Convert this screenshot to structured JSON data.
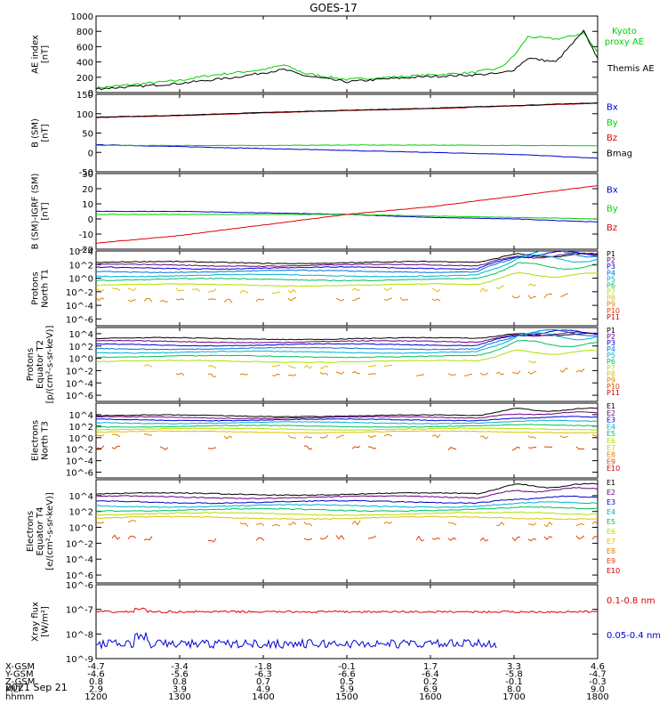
{
  "title": "GOES-17",
  "date": "2021 Sep 21",
  "colors": {
    "black": "#000000",
    "red": "#e00000",
    "green": "#00d000",
    "blue": "#0000d0"
  },
  "footer": {
    "row_labels": [
      "X-GSM",
      "Y-GSM",
      "Z-GSM",
      "MLT",
      "hhmm"
    ],
    "columns": [
      [
        "-4.7",
        "-4.6",
        "0.8",
        "2.9",
        "1200"
      ],
      [
        "-3.4",
        "-5.6",
        "0.8",
        "3.9",
        "1300"
      ],
      [
        "-1.8",
        "-6.3",
        "0.7",
        "4.9",
        "1400"
      ],
      [
        "-0.1",
        "-6.6",
        "0.5",
        "5.9",
        "1500"
      ],
      [
        "1.7",
        "-6.4",
        "0.2",
        "6.9",
        "1600"
      ],
      [
        "3.3",
        "-5.8",
        "-0.1",
        "8.0",
        "1700"
      ],
      [
        "4.6",
        "-4.7",
        "-0.3",
        "9.0",
        "1800"
      ]
    ]
  },
  "chart_data": [
    {
      "type": "line",
      "ylabel": [
        "AE index",
        "[nT]"
      ],
      "ylim": [
        0,
        1000
      ],
      "yticks": [
        "1000",
        "800",
        "600",
        "400",
        "200",
        "0"
      ],
      "legend": [
        {
          "text": "Kyoto",
          "color": "#00d000"
        },
        {
          "text": "proxy AE",
          "color": "#00d000"
        },
        {
          "text": "Themis AE",
          "color": "#000000"
        }
      ],
      "x": [
        1200,
        1230,
        1300,
        1320,
        1340,
        1400,
        1415,
        1430,
        1500,
        1530,
        1600,
        1630,
        1650,
        1700,
        1710,
        1730,
        1740,
        1750,
        1800
      ],
      "series": [
        {
          "name": "Kyoto proxy AE",
          "color": "#00d000",
          "values": [
            60,
            110,
            160,
            220,
            260,
            300,
            360,
            250,
            170,
            200,
            230,
            260,
            320,
            480,
            730,
            700,
            730,
            780,
            520
          ]
        },
        {
          "name": "Themis AE",
          "color": "#000000",
          "values": [
            50,
            80,
            120,
            160,
            200,
            260,
            300,
            220,
            140,
            180,
            210,
            230,
            250,
            300,
            450,
            400,
            600,
            800,
            450
          ]
        }
      ]
    },
    {
      "type": "line",
      "ylabel": [
        "B (SM)",
        "[nT]"
      ],
      "ylim": [
        -50,
        150
      ],
      "yticks": [
        "150",
        "100",
        "50",
        "0",
        "-50"
      ],
      "legend": [
        {
          "text": "Bx",
          "color": "#0000d0"
        },
        {
          "text": "By",
          "color": "#00d000"
        },
        {
          "text": "Bz",
          "color": "#e00000"
        },
        {
          "text": "Bmag",
          "color": "#000000"
        }
      ],
      "x": [
        1200,
        1300,
        1400,
        1500,
        1600,
        1700,
        1800
      ],
      "series": [
        {
          "name": "Bx",
          "color": "#0000d0",
          "values": [
            20,
            15,
            10,
            5,
            0,
            -5,
            -15
          ]
        },
        {
          "name": "By",
          "color": "#00d000",
          "values": [
            18,
            18,
            18,
            19,
            19,
            18,
            17
          ]
        },
        {
          "name": "Bz",
          "color": "#e00000",
          "values": [
            90,
            95,
            102,
            108,
            113,
            120,
            127
          ]
        },
        {
          "name": "Bmag",
          "color": "#000000",
          "values": [
            91,
            96,
            103,
            109,
            114,
            121,
            128
          ]
        }
      ]
    },
    {
      "type": "line",
      "ylabel": [
        "B (SM)-IGRF (SM)",
        "[nT]"
      ],
      "ylim": [
        -20,
        30
      ],
      "yticks": [
        "30",
        "20",
        "10",
        "0",
        "-10",
        "-20"
      ],
      "legend": [
        {
          "text": "Bx",
          "color": "#0000d0"
        },
        {
          "text": "By",
          "color": "#00d000"
        },
        {
          "text": "Bz",
          "color": "#e00000"
        }
      ],
      "x": [
        1200,
        1300,
        1400,
        1500,
        1600,
        1700,
        1800
      ],
      "series": [
        {
          "name": "Bx",
          "color": "#0000d0",
          "values": [
            5,
            5,
            4,
            3,
            1,
            0,
            -2
          ]
        },
        {
          "name": "By",
          "color": "#00d000",
          "values": [
            3,
            3,
            3,
            3,
            2,
            1,
            0
          ]
        },
        {
          "name": "Bz",
          "color": "#e00000",
          "values": [
            -16,
            -11,
            -4,
            3,
            8,
            15,
            22
          ]
        }
      ]
    },
    {
      "type": "line",
      "log": true,
      "ylabel": [
        "Protons",
        "North T1"
      ],
      "ylim": [
        -7,
        4
      ],
      "yticks": [
        "10^4",
        "10^2",
        "10^0",
        "10^-2",
        "10^-4",
        "10^-6"
      ],
      "ytick_exp": [
        4,
        2,
        0,
        -2,
        -4,
        -6
      ],
      "legend": [
        {
          "text": "P1",
          "color": "#000000"
        },
        {
          "text": "P2",
          "color": "#6a0080"
        },
        {
          "text": "P3",
          "color": "#0000d0"
        },
        {
          "text": "P4",
          "color": "#0070e0"
        },
        {
          "text": "P5",
          "color": "#00b0d0"
        },
        {
          "text": "P6",
          "color": "#00c060"
        },
        {
          "text": "P7",
          "color": "#b0e000"
        },
        {
          "text": "P8",
          "color": "#e0c000"
        },
        {
          "text": "P9",
          "color": "#e08000"
        },
        {
          "text": "P10",
          "color": "#e04000"
        },
        {
          "text": "P11",
          "color": "#d00000"
        }
      ],
      "levels": [
        2.3,
        1.9,
        1.5,
        1.0,
        0.4,
        -0.2,
        -1.0,
        -1.8,
        -3.2
      ],
      "storm_rise": [
        1.2,
        1.5,
        2.0,
        2.5,
        2.4,
        2.0,
        1.6,
        1.0,
        0.6
      ]
    },
    {
      "type": "line",
      "log": true,
      "ylabel": [
        "Protons",
        "Equator T2",
        "[p/(cm²-s-sr-keV)]"
      ],
      "ylim": [
        -7,
        5
      ],
      "yticks": [
        "10^4",
        "10^2",
        "10^0",
        "10^-2",
        "10^-4",
        "10^-6"
      ],
      "ytick_exp": [
        4,
        2,
        0,
        -2,
        -4,
        -6
      ],
      "legend": [
        {
          "text": "P1",
          "color": "#000000"
        },
        {
          "text": "P2",
          "color": "#6a0080"
        },
        {
          "text": "P3",
          "color": "#0000d0"
        },
        {
          "text": "P4",
          "color": "#0070e0"
        },
        {
          "text": "P5",
          "color": "#00b0d0"
        },
        {
          "text": "P6",
          "color": "#00c060"
        },
        {
          "text": "P7",
          "color": "#b0e000"
        },
        {
          "text": "P8",
          "color": "#e0c000"
        },
        {
          "text": "P9",
          "color": "#e08000"
        },
        {
          "text": "P10",
          "color": "#e04000"
        },
        {
          "text": "P11",
          "color": "#d00000"
        }
      ],
      "levels": [
        3.2,
        2.7,
        2.2,
        1.6,
        1.0,
        0.3,
        -0.5,
        -1.3,
        -2.6
      ],
      "storm_rise": [
        0.8,
        1.3,
        1.9,
        2.4,
        2.5,
        2.1,
        1.6,
        1.0,
        0.5
      ]
    },
    {
      "type": "line",
      "log": true,
      "ylabel": [
        "Electrons",
        "North T3"
      ],
      "ylim": [
        -7,
        6
      ],
      "yticks": [
        "10^4",
        "10^2",
        "10^0",
        "10^-2",
        "10^-4",
        "10^-6"
      ],
      "ytick_exp": [
        4,
        2,
        0,
        -2,
        -4,
        -6
      ],
      "legend": [
        {
          "text": "E1",
          "color": "#000000"
        },
        {
          "text": "E2",
          "color": "#6a0080"
        },
        {
          "text": "E3",
          "color": "#0000d0"
        },
        {
          "text": "E4",
          "color": "#00b0d0"
        },
        {
          "text": "E5",
          "color": "#00c060"
        },
        {
          "text": "E6",
          "color": "#b0e000"
        },
        {
          "text": "E7",
          "color": "#e0c000"
        },
        {
          "text": "E8",
          "color": "#e08000"
        },
        {
          "text": "E9",
          "color": "#e04000"
        },
        {
          "text": "E10",
          "color": "#d00000"
        }
      ],
      "levels": [
        3.8,
        3.5,
        3.1,
        2.6,
        2.0,
        1.5,
        1.0,
        0.2,
        -1.8
      ],
      "storm_rise": [
        1.2,
        0.8,
        0.4,
        0.2,
        0.1,
        0,
        0,
        0,
        0
      ]
    },
    {
      "type": "line",
      "log": true,
      "ylabel": [
        "Electrons",
        "Equator T4",
        "[e/(cm²-s-sr-keV)]"
      ],
      "ylim": [
        -7,
        6
      ],
      "yticks": [
        "10^4",
        "10^2",
        "10^0",
        "10^-2",
        "10^-4",
        "10^-6"
      ],
      "ytick_exp": [
        4,
        2,
        0,
        -2,
        -4,
        -6
      ],
      "legend": [
        {
          "text": "E1",
          "color": "#000000"
        },
        {
          "text": "E2",
          "color": "#6a0080"
        },
        {
          "text": "E3",
          "color": "#0000d0"
        },
        {
          "text": "E4",
          "color": "#00b0d0"
        },
        {
          "text": "E5",
          "color": "#00c060"
        },
        {
          "text": "E6",
          "color": "#b0e000"
        },
        {
          "text": "E7",
          "color": "#e0c000"
        },
        {
          "text": "E8",
          "color": "#e08000"
        },
        {
          "text": "E9",
          "color": "#e04000"
        },
        {
          "text": "E10",
          "color": "#d00000"
        }
      ],
      "levels": [
        4.2,
        3.8,
        3.2,
        2.7,
        2.2,
        1.7,
        1.2,
        0.5,
        -1.4
      ],
      "storm_rise": [
        1.2,
        1.0,
        0.5,
        0.3,
        0.2,
        0.1,
        0,
        0,
        0
      ]
    },
    {
      "type": "line",
      "log": true,
      "ylabel": [
        "Xray flux",
        "[W/m²]"
      ],
      "ylim": [
        -9,
        -6
      ],
      "yticks": [
        "10^-6",
        "10^-7",
        "10^-8",
        "10^-9"
      ],
      "ytick_exp": [
        -6,
        -7,
        -8,
        -9
      ],
      "legend": [
        {
          "text": "0.1-0.8 nm",
          "color": "#e00000"
        },
        {
          "text": "0.05-0.4 nm",
          "color": "#0000d0"
        }
      ],
      "series": [
        {
          "name": "0.1-0.8 nm",
          "color": "#e00000",
          "base": -7.1
        },
        {
          "name": "0.05-0.4 nm",
          "color": "#0000d0",
          "base": -8.4
        }
      ]
    }
  ]
}
